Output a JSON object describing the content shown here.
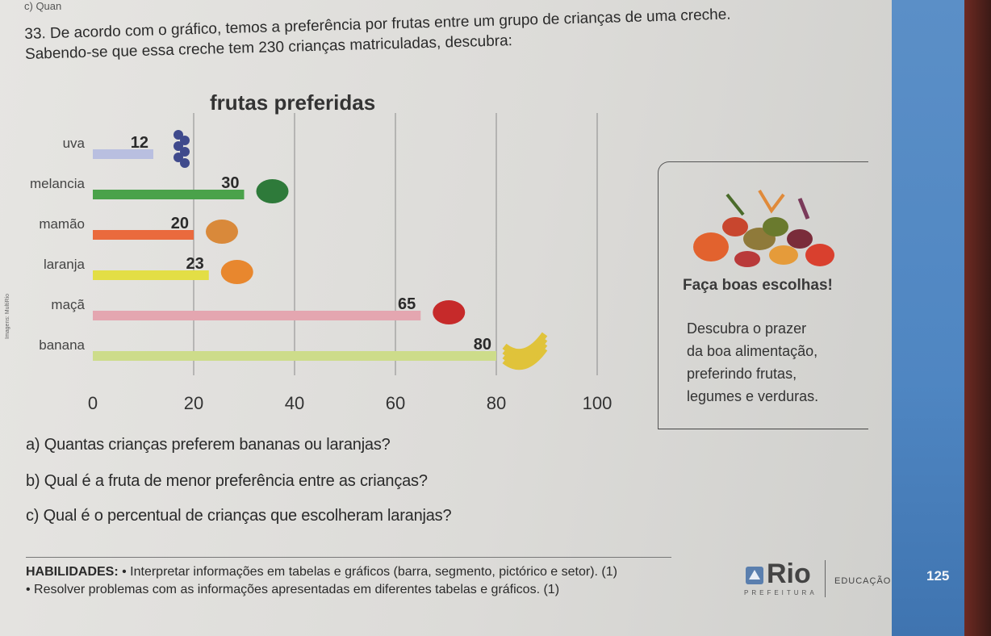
{
  "page": {
    "top_cut_text": "c) Quan",
    "side_credit": "Imagens: MultiRio"
  },
  "question": {
    "line1": "33. De acordo com o gráfico, temos a preferência por frutas entre um grupo de crianças de uma creche.",
    "line2": "Sabendo-se que essa creche tem 230 crianças matriculadas, descubra:"
  },
  "chart_data": {
    "type": "bar",
    "orientation": "horizontal",
    "title": "frutas preferidas",
    "categories": [
      "uva",
      "melancia",
      "mamão",
      "laranja",
      "maçã",
      "banana"
    ],
    "values": [
      12,
      30,
      20,
      23,
      65,
      80
    ],
    "value_labels": [
      "12",
      "30",
      "20",
      "23",
      "65",
      "80"
    ],
    "colors": [
      "#b9bfe0",
      "#4aa24a",
      "#ea6a3d",
      "#e3de45",
      "#e4a6b0",
      "#cddc8a"
    ],
    "x_ticks": [
      "0",
      "20",
      "40",
      "60",
      "80",
      "100"
    ],
    "xlim": [
      0,
      100
    ],
    "grid": true
  },
  "info_box": {
    "title": "Faça boas escolhas!",
    "lines": [
      "Descubra o prazer",
      "da boa alimentação,",
      "preferindo frutas,",
      "legumes e verduras."
    ]
  },
  "items": {
    "a": "a) Quantas crianças preferem bananas ou laranjas?",
    "b": "b) Qual é a fruta de menor preferência entre as crianças?",
    "c": "c) Qual é o percentual de crianças que escolheram laranjas?"
  },
  "skills": {
    "label": "HABILIDADES:",
    "line1": " • Interpretar informações em tabelas e gráficos (barra, segmento, pictórico e setor). (1)",
    "line2": "• Resolver problemas com as informações apresentadas em diferentes tabelas e gráficos. (1)"
  },
  "logo": {
    "name": "Rio",
    "sub": "PREFEITURA",
    "dept": "EDUCAÇÃO"
  },
  "page_number": "125"
}
